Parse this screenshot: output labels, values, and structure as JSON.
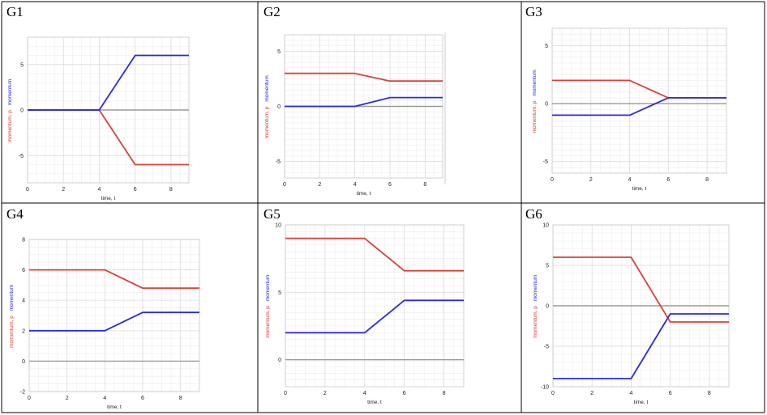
{
  "panels": [
    {
      "label": "G1",
      "chart_data": {
        "type": "line",
        "xlabel": "time, t",
        "ylabel_red": "momentum, p",
        "ylabel_blue": "momentum",
        "xlim": [
          0,
          9
        ],
        "ylim": [
          -8,
          8
        ],
        "xticks": [
          0,
          2,
          4,
          6,
          8
        ],
        "yticks": [
          -5,
          0,
          5
        ],
        "grid": true,
        "series": [
          {
            "color": "#d9403a",
            "x": [
              0,
              4,
              6,
              9
            ],
            "y": [
              0,
              0,
              -6,
              -6
            ]
          },
          {
            "color": "#2a2ae0",
            "x": [
              0,
              4,
              6,
              9
            ],
            "y": [
              0,
              0,
              6,
              6
            ]
          }
        ]
      }
    },
    {
      "label": "G2",
      "chart_data": {
        "type": "line",
        "xlabel": "time, t",
        "ylabel_red": "momentum, p",
        "ylabel_blue": "momentum",
        "xlim": [
          0,
          9
        ],
        "ylim": [
          -6.5,
          6.5
        ],
        "xticks": [
          0,
          2,
          4,
          6,
          8
        ],
        "yticks": [
          -5,
          0,
          5
        ],
        "grid": true,
        "series": [
          {
            "color": "#d9403a",
            "x": [
              0,
              4,
              6,
              9
            ],
            "y": [
              3,
              3,
              2.3,
              2.3
            ]
          },
          {
            "color": "#2a2ae0",
            "x": [
              0,
              4,
              6,
              9
            ],
            "y": [
              0,
              0,
              0.8,
              0.8
            ]
          }
        ]
      }
    },
    {
      "label": "G3",
      "chart_data": {
        "type": "line",
        "xlabel": "time, t",
        "ylabel_red": "momentum, p",
        "ylabel_blue": "momentum",
        "xlim": [
          0,
          9
        ],
        "ylim": [
          -6,
          6.5
        ],
        "xticks": [
          0,
          2,
          4,
          6,
          8
        ],
        "yticks": [
          -5,
          0,
          5
        ],
        "grid": true,
        "series": [
          {
            "color": "#d9403a",
            "x": [
              0,
              4,
              6,
              9
            ],
            "y": [
              2,
              2,
              0.5,
              0.5
            ]
          },
          {
            "color": "#2a2ae0",
            "x": [
              0,
              4,
              6,
              9
            ],
            "y": [
              -1,
              -1,
              0.5,
              0.5
            ]
          }
        ]
      }
    },
    {
      "label": "G4",
      "chart_data": {
        "type": "line",
        "xlabel": "time, t",
        "ylabel_red": "momentum, p",
        "ylabel_blue": "momentum",
        "xlim": [
          0,
          9
        ],
        "ylim": [
          -2,
          8
        ],
        "xticks": [
          0,
          2,
          4,
          6,
          8
        ],
        "yticks": [
          -2,
          0,
          2,
          4,
          6,
          8
        ],
        "grid": true,
        "series": [
          {
            "color": "#d9403a",
            "x": [
              0,
              4,
              6,
              9
            ],
            "y": [
              6,
              6,
              4.8,
              4.8
            ]
          },
          {
            "color": "#2a2ae0",
            "x": [
              0,
              4,
              6,
              9
            ],
            "y": [
              2,
              2,
              3.2,
              3.2
            ]
          }
        ]
      }
    },
    {
      "label": "G5",
      "chart_data": {
        "type": "line",
        "xlabel": "time, t",
        "ylabel_red": "momentum, p",
        "ylabel_blue": "momentum",
        "xlim": [
          0,
          9
        ],
        "ylim": [
          -2,
          10
        ],
        "xticks": [
          0,
          2,
          4,
          6,
          8
        ],
        "yticks": [
          0,
          5,
          10
        ],
        "grid": true,
        "series": [
          {
            "color": "#d9403a",
            "x": [
              0,
              4,
              6,
              9
            ],
            "y": [
              9,
              9,
              6.6,
              6.6
            ]
          },
          {
            "color": "#2a2ae0",
            "x": [
              0,
              4,
              6,
              9
            ],
            "y": [
              2,
              2,
              4.4,
              4.4
            ]
          }
        ]
      }
    },
    {
      "label": "G6",
      "chart_data": {
        "type": "line",
        "xlabel": "time, t",
        "ylabel_red": "momentum, p",
        "ylabel_blue": "momentum",
        "xlim": [
          0,
          9
        ],
        "ylim": [
          -10,
          10
        ],
        "xticks": [
          0,
          2,
          4,
          6,
          8
        ],
        "yticks": [
          -10,
          -5,
          0,
          5,
          10
        ],
        "grid": true,
        "series": [
          {
            "color": "#d9403a",
            "x": [
              0,
              4,
              6,
              9
            ],
            "y": [
              6,
              6,
              -2,
              -2
            ]
          },
          {
            "color": "#2a2ae0",
            "x": [
              0,
              4,
              6,
              9
            ],
            "y": [
              -9,
              -9,
              -1,
              -1
            ]
          }
        ]
      }
    }
  ]
}
